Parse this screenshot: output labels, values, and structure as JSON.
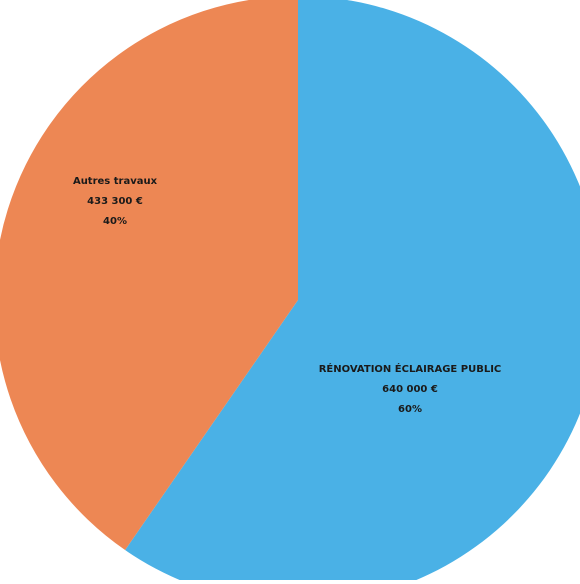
{
  "chart_data": {
    "type": "pie",
    "title": "",
    "slices": [
      {
        "label": "RÉNOVATION ÉCLAIRAGE PUBLIC",
        "amount": "640 000 €",
        "percent_label": "60%",
        "value": 640000,
        "color": "#4ab1e6"
      },
      {
        "label": "Autres travaux",
        "amount": "433 300 €",
        "percent_label": "40%",
        "value": 433300,
        "color": "#ed8754"
      }
    ],
    "start": "12 o'clock",
    "direction": "clockwise",
    "legend": "none",
    "data_labels": "on slices"
  }
}
